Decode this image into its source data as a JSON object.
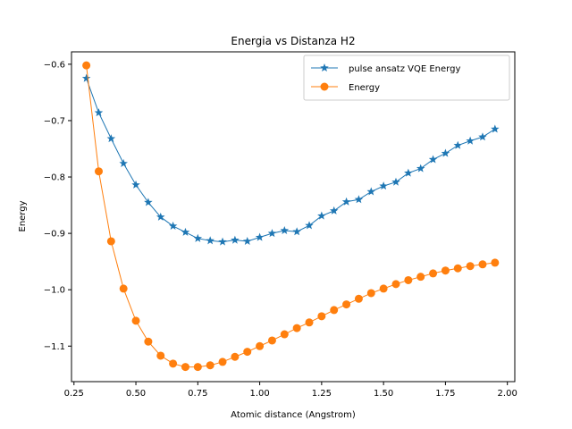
{
  "chart_data": {
    "type": "line",
    "title": "Energia vs Distanza H2",
    "xlabel": "Atomic distance (Angstrom)",
    "ylabel": "Energy",
    "xlim": [
      0.24,
      2.03
    ],
    "ylim": [
      -1.163,
      -0.578
    ],
    "xticks": [
      0.25,
      0.5,
      0.75,
      1.0,
      1.25,
      1.5,
      1.75,
      2.0
    ],
    "xtick_labels": [
      "0.25",
      "0.50",
      "0.75",
      "1.00",
      "1.25",
      "1.50",
      "1.75",
      "2.00"
    ],
    "yticks": [
      -0.6,
      -0.7,
      -0.8,
      -0.9,
      -1.0,
      -1.1
    ],
    "ytick_labels": [
      "−0.6",
      "−0.7",
      "−0.8",
      "−0.9",
      "−1.0",
      "−1.1"
    ],
    "grid": false,
    "legend_position": "top-right",
    "x": [
      0.3,
      0.35,
      0.4,
      0.45,
      0.5,
      0.55,
      0.6,
      0.65,
      0.7,
      0.75,
      0.8,
      0.85,
      0.9,
      0.95,
      1.0,
      1.05,
      1.1,
      1.15,
      1.2,
      1.25,
      1.3,
      1.35,
      1.4,
      1.45,
      1.5,
      1.55,
      1.6,
      1.65,
      1.7,
      1.75,
      1.8,
      1.85,
      1.9,
      1.95
    ],
    "series": [
      {
        "name": "pulse ansatz VQE Energy",
        "color": "#1f77b4",
        "marker": "star",
        "values": [
          -0.625,
          -0.686,
          -0.732,
          -0.776,
          -0.814,
          -0.845,
          -0.871,
          -0.887,
          -0.898,
          -0.909,
          -0.913,
          -0.915,
          -0.912,
          -0.914,
          -0.907,
          -0.9,
          -0.895,
          -0.897,
          -0.886,
          -0.869,
          -0.86,
          -0.844,
          -0.84,
          -0.826,
          -0.816,
          -0.809,
          -0.793,
          -0.785,
          -0.769,
          -0.758,
          -0.744,
          -0.736,
          -0.729,
          -0.715
        ]
      },
      {
        "name": "Energy",
        "color": "#ff7f0e",
        "marker": "circle",
        "values": [
          -0.602,
          -0.79,
          -0.914,
          -0.998,
          -1.055,
          -1.092,
          -1.117,
          -1.131,
          -1.137,
          -1.137,
          -1.134,
          -1.128,
          -1.119,
          -1.11,
          -1.1,
          -1.09,
          -1.079,
          -1.068,
          -1.058,
          -1.047,
          -1.036,
          -1.026,
          -1.016,
          -1.006,
          -0.998,
          -0.99,
          -0.983,
          -0.977,
          -0.971,
          -0.966,
          -0.962,
          -0.958,
          -0.955,
          -0.952
        ]
      }
    ]
  }
}
